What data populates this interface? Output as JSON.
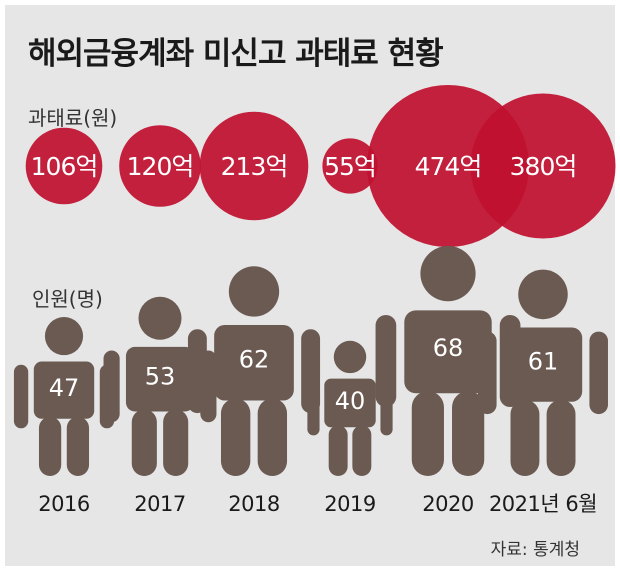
{
  "title": "해외금융계좌 미신고 과태료 현황",
  "source": "자료: 통계청",
  "colors": {
    "background": "#e6e6e6",
    "fine_circle": "#c0102f",
    "person": "#6a5a52",
    "text_light": "#ffffff",
    "text_dark": "#1a1a1a"
  },
  "chart_data": [
    {
      "type": "bubble",
      "ylabel": "과태료(원)",
      "categories": [
        "2016",
        "2017",
        "2018",
        "2019",
        "2020",
        "2021년 6월"
      ],
      "values": [
        106,
        120,
        213,
        55,
        474,
        380
      ],
      "data_labels": [
        "106억",
        "120억",
        "213억",
        "55억",
        "474억",
        "380억"
      ],
      "unit": "억 원"
    },
    {
      "type": "pictogram",
      "ylabel": "인원(명)",
      "categories": [
        "2016",
        "2017",
        "2018",
        "2019",
        "2020",
        "2021년 6월"
      ],
      "values": [
        47,
        53,
        62,
        40,
        68,
        61
      ],
      "data_labels": [
        "47",
        "53",
        "62",
        "40",
        "68",
        "61"
      ],
      "icon": "person-icon"
    }
  ]
}
